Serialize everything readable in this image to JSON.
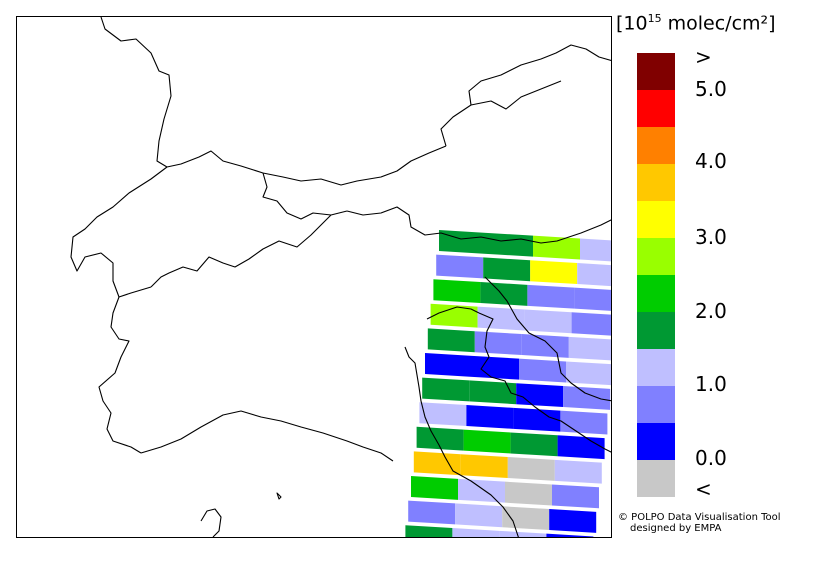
{
  "map": {
    "land_color": "#ffffff",
    "border_color": "#000000",
    "ocean_color": "#ffffff"
  },
  "legend": {
    "title_prefix": "[10",
    "title_exp": "15",
    "title_suffix": " molec/cm²]",
    "colors": [
      "#800000",
      "#ff0000",
      "#ff8000",
      "#ffc800",
      "#ffff00",
      "#99ff00",
      "#00cc00",
      "#009933",
      "#bfbfff",
      "#8080ff",
      "#0000ff",
      "#c8c8c8"
    ],
    "ticks": [
      ">",
      "5.0",
      "4.0",
      "3.0",
      "2.0",
      "1.0",
      "0.0",
      "<"
    ]
  },
  "credit": {
    "line1": "© POLPO Data Visualisation Tool",
    "line2": "designed by EMPA"
  },
  "swath": {
    "rows": [
      [
        "#009933",
        "#009933",
        "#99ff00",
        "#bfbfff"
      ],
      [
        "#8080ff",
        "#009933",
        "#ffff00",
        "#bfbfff"
      ],
      [
        "#00cc00",
        "#009933",
        "#8080ff",
        "#8080ff"
      ],
      [
        "#99ff00",
        "#bfbfff",
        "#bfbfff",
        "#8080ff"
      ],
      [
        "#009933",
        "#8080ff",
        "#8080ff",
        "#bfbfff"
      ],
      [
        "#0000ff",
        "#0000ff",
        "#8080ff",
        "#bfbfff"
      ],
      [
        "#009933",
        "#009933",
        "#0000ff",
        "#8080ff"
      ],
      [
        "#bfbfff",
        "#0000ff",
        "#0000ff",
        "#8080ff"
      ],
      [
        "#009933",
        "#00cc00",
        "#009933",
        "#0000ff"
      ],
      [
        "#ffc800",
        "#ffc800",
        "#c8c8c8",
        "#bfbfff"
      ],
      [
        "#00cc00",
        "#bfbfff",
        "#c8c8c8",
        "#8080ff"
      ],
      [
        "#8080ff",
        "#bfbfff",
        "#c8c8c8",
        "#0000ff"
      ],
      [
        "#009933",
        "#bfbfff",
        "#bfbfff",
        "#0000ff"
      ]
    ]
  }
}
